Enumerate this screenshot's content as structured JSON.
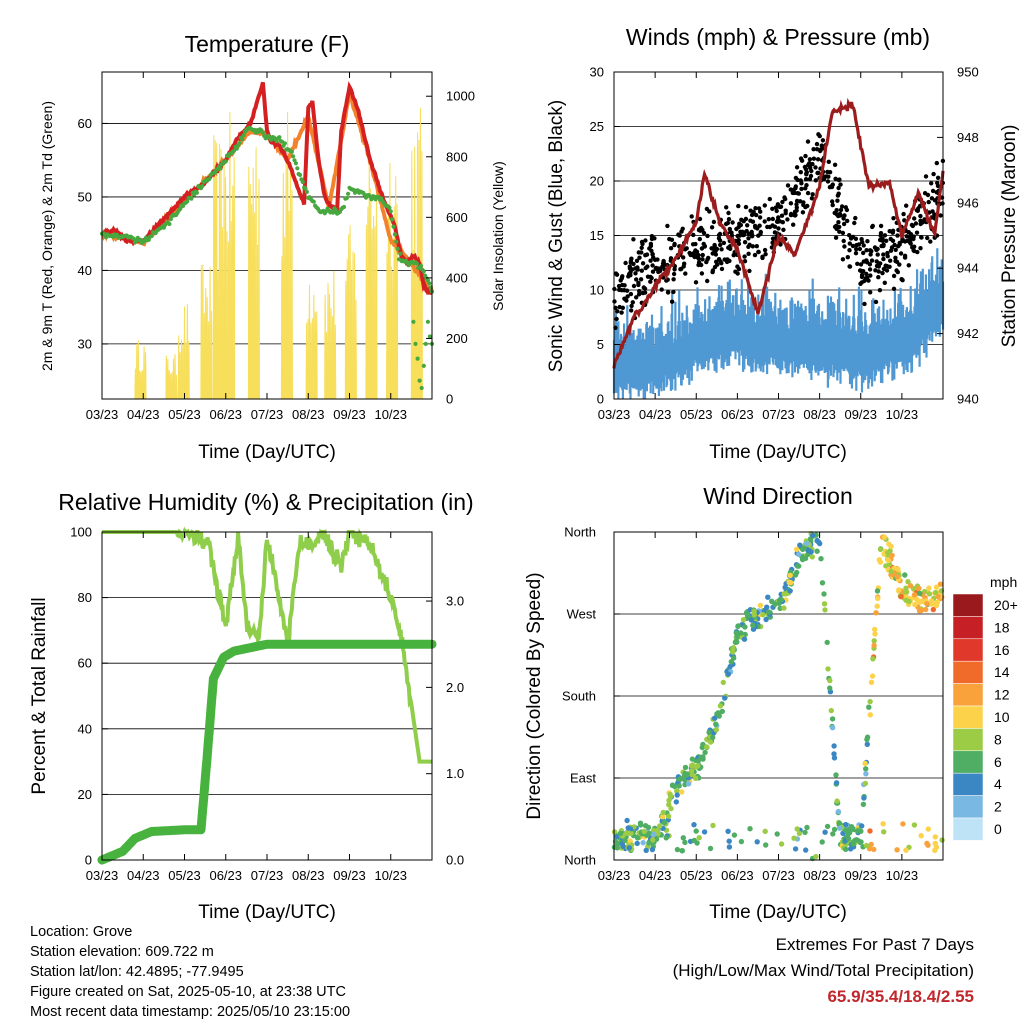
{
  "colors": {
    "temp_red": "#d42020",
    "temp_orange": "#f2822c",
    "dew_green": "#46a83e",
    "solar_yellow": "#f7df5c",
    "wind_blue": "#4f98d3",
    "gust_black": "#000000",
    "pressure_maroon": "#9b1c1c",
    "rh_light_green": "#8fce4a",
    "precip_green": "#48b23e"
  },
  "x_tick_labels": [
    "03/23",
    "04/23",
    "05/23",
    "06/23",
    "07/23",
    "08/23",
    "09/23",
    "10/23"
  ],
  "panels": {
    "temperature": {
      "title": "Temperature (F)",
      "xlabel": "Time (Day/UTC)",
      "ylabel_left": "2m & 9m T (Red, Orange) & 2m Td (Green)",
      "ylabel_right": "Solar Insolation (Yellow)",
      "y_left_ticks": [
        "30",
        "40",
        "50",
        "60"
      ],
      "y_right_ticks": [
        "0",
        "200",
        "400",
        "600",
        "800",
        "1000"
      ]
    },
    "winds": {
      "title": "Winds (mph) & Pressure (mb)",
      "xlabel": "Time (Day/UTC)",
      "ylabel_left": "Sonic Wind & Gust (Blue, Black)",
      "ylabel_right": "Station Pressure (Maroon)",
      "y_left_ticks": [
        "0",
        "5",
        "10",
        "15",
        "20",
        "25",
        "30"
      ],
      "y_right_ticks": [
        "940",
        "942",
        "944",
        "946",
        "948",
        "950"
      ]
    },
    "humidity": {
      "title": "Relative Humidity (%) & Precipitation (in)",
      "xlabel": "Time (Day/UTC)",
      "ylabel_left": "Percent & Total Rainfall",
      "y_left_ticks": [
        "0",
        "20",
        "40",
        "60",
        "80",
        "100"
      ],
      "y_right_ticks": [
        "0.0",
        "1.0",
        "2.0",
        "3.0"
      ]
    },
    "direction": {
      "title": "Wind Direction",
      "xlabel": "Time (Day/UTC)",
      "ylabel_left": "Direction (Colored By Speed)",
      "y_left_ticks": [
        "North",
        "East",
        "South",
        "West",
        "North"
      ],
      "legend_title": "mph",
      "legend_labels": [
        "20+",
        "18",
        "16",
        "14",
        "12",
        "10",
        "8",
        "6",
        "4",
        "2",
        "0"
      ],
      "legend_colors": [
        "#99191c",
        "#c62026",
        "#e0392b",
        "#f06a2a",
        "#f9a23b",
        "#fbd24a",
        "#9ccb45",
        "#4fae63",
        "#3b87c4",
        "#7ab8e4",
        "#bfe3f6"
      ]
    }
  },
  "chart_data": [
    {
      "type": "line",
      "title": "Temperature (F)",
      "xlabel": "Time (Day/UTC)",
      "ylabel": "2m & 9m T (Red, Orange) & 2m Td (Green)",
      "ylabel_right": "Solar Insolation (Yellow)",
      "x_ticks": [
        "03/23",
        "04/23",
        "05/23",
        "06/23",
        "07/23",
        "08/23",
        "09/23",
        "10/23"
      ],
      "ylim": [
        22.5,
        67
      ],
      "ylim_right": [
        0,
        1080
      ],
      "series": [
        {
          "name": "2m T (Red)",
          "axis": "left",
          "x": [
            0,
            0.3,
            0.6,
            1.0,
            1.5,
            2.0,
            2.5,
            3.0,
            3.3,
            3.6,
            3.9,
            4.0,
            4.1,
            4.3,
            4.5,
            4.7,
            4.9,
            5.0,
            5.1,
            5.25,
            5.4,
            5.5,
            5.7,
            5.8,
            6.0,
            6.2,
            6.5,
            6.8,
            7.1,
            7.25,
            7.4,
            7.55,
            7.7,
            7.8,
            7.9,
            8.0
          ],
          "y": [
            45,
            45.5,
            44,
            44,
            47,
            50,
            52,
            55,
            58,
            60,
            65.5,
            59,
            57.5,
            57,
            55,
            52,
            49,
            62,
            63,
            55,
            50,
            49,
            48,
            59,
            65,
            62,
            55,
            50,
            46,
            42,
            41,
            42,
            41,
            38,
            37,
            37
          ]
        },
        {
          "name": "9m T (Orange)",
          "axis": "left",
          "x": [
            0,
            1.0,
            2.0,
            3.0,
            3.6,
            4.0,
            4.5,
            5.0,
            5.5,
            6.0,
            6.5,
            7.0,
            7.5,
            8.0
          ],
          "y": [
            45,
            43.8,
            49.5,
            55,
            59,
            58.5,
            55,
            61,
            48.5,
            64,
            55,
            44,
            41,
            37
          ]
        },
        {
          "name": "2m Td (Green)",
          "axis": "left",
          "x": [
            0,
            0.5,
            1.0,
            1.5,
            2.0,
            2.5,
            3.0,
            3.3,
            3.5,
            3.8,
            4.1,
            4.3,
            4.6,
            4.8,
            5.0,
            5.3,
            5.8,
            6.0,
            6.5,
            6.8,
            7.0,
            7.2,
            7.4,
            7.6,
            7.8,
            8.0
          ],
          "y": [
            45,
            44.5,
            44,
            46,
            49,
            52,
            55,
            57,
            59,
            59,
            58,
            58,
            56,
            53,
            50,
            48,
            48,
            51,
            50,
            49.5,
            48,
            42,
            41,
            41,
            40,
            37
          ]
        },
        {
          "name": "Solar Insolation (Yellow)",
          "axis": "right",
          "x": [
            0,
            1,
            2,
            3,
            4,
            5,
            6,
            7,
            8
          ],
          "y": [
            0,
            0,
            300,
            0,
            750,
            0,
            1000,
            0,
            0
          ]
        }
      ]
    },
    {
      "type": "scatter",
      "title": "Winds (mph) & Pressure (mb)",
      "xlabel": "Time (Day/UTC)",
      "ylabel": "Sonic Wind & Gust (Blue, Black)",
      "ylabel_right": "Station Pressure (Maroon)",
      "x_ticks": [
        "03/23",
        "04/23",
        "05/23",
        "06/23",
        "07/23",
        "08/23",
        "09/23",
        "10/23"
      ],
      "ylim": [
        0,
        30
      ],
      "ylim_right": [
        940,
        950
      ],
      "series": [
        {
          "name": "Sonic Wind (Blue)",
          "axis": "left",
          "x": [
            0,
            1,
            2,
            3,
            4,
            5,
            6,
            7,
            8
          ],
          "y": [
            4,
            4,
            6,
            7,
            6,
            6,
            5,
            6,
            10
          ]
        },
        {
          "name": "Gust (Black)",
          "axis": "left",
          "x": [
            0,
            1,
            2,
            3,
            4,
            5,
            6,
            7,
            8
          ],
          "y": [
            10,
            12,
            14,
            15,
            16,
            22,
            12,
            14,
            19
          ]
        },
        {
          "name": "Station Pressure (Maroon)",
          "axis": "right",
          "x": [
            0,
            0.5,
            1.0,
            1.5,
            2.0,
            2.2,
            2.6,
            3.0,
            3.5,
            4.0,
            4.4,
            5.0,
            5.3,
            5.8,
            6.2,
            6.7,
            7.0,
            7.4,
            7.8,
            8.0
          ],
          "y": [
            941,
            942.5,
            943.4,
            944.3,
            945.4,
            946.9,
            945.3,
            944.6,
            942.6,
            945,
            944.4,
            946.5,
            948.8,
            949,
            946.5,
            946.6,
            945,
            946.3,
            945,
            947
          ]
        }
      ]
    },
    {
      "type": "line",
      "title": "Relative Humidity (%) & Precipitation (in)",
      "xlabel": "Time (Day/UTC)",
      "ylabel": "Percent & Total Rainfall",
      "x_ticks": [
        "03/23",
        "04/23",
        "05/23",
        "06/23",
        "07/23",
        "08/23",
        "09/23",
        "10/23"
      ],
      "ylim": [
        0,
        100
      ],
      "ylim_right": [
        0,
        3.8
      ],
      "series": [
        {
          "name": "Relative Humidity (%)",
          "axis": "left",
          "x": [
            0,
            1.8,
            2.2,
            2.6,
            3.0,
            3.3,
            3.5,
            3.8,
            4.0,
            4.5,
            4.8,
            5.0,
            5.3,
            5.8,
            6.0,
            6.5,
            7.0,
            7.3,
            7.7,
            8.0
          ],
          "y": [
            100,
            100,
            100,
            96,
            70,
            100,
            72,
            68,
            98,
            66,
            98,
            96,
            100,
            90,
            100,
            96,
            80,
            65,
            30,
            30
          ]
        },
        {
          "name": "Total Rainfall (in)",
          "axis": "right",
          "x": [
            0,
            0.5,
            0.8,
            1.2,
            2.0,
            2.4,
            2.55,
            2.7,
            2.95,
            3.2,
            3.5,
            4.0,
            8.0
          ],
          "y": [
            0,
            0.1,
            0.25,
            0.33,
            0.35,
            0.35,
            1.2,
            2.1,
            2.35,
            2.42,
            2.45,
            2.5,
            2.5
          ]
        }
      ]
    },
    {
      "type": "scatter",
      "title": "Wind Direction",
      "xlabel": "Time (Day/UTC)",
      "ylabel": "Direction (Colored By Speed)",
      "x_ticks": [
        "03/23",
        "04/23",
        "05/23",
        "06/23",
        "07/23",
        "08/23",
        "09/23",
        "10/23"
      ],
      "y_ticks": [
        "North",
        "East",
        "South",
        "West",
        "North"
      ],
      "legend_title": "mph",
      "series": [
        {
          "name": "Wind direction (deg, colored by speed)",
          "x": [
            0,
            0.5,
            1,
            1.5,
            2,
            2.5,
            3,
            3.5,
            4,
            4.5,
            5,
            5.5,
            6,
            6.5,
            7,
            7.5,
            8
          ],
          "y": [
            20,
            30,
            25,
            80,
            100,
            150,
            250,
            270,
            280,
            330,
            355,
            20,
            25,
            350,
            300,
            280,
            290
          ]
        }
      ]
    }
  ],
  "info": {
    "location": "Location: Grove",
    "elevation": "Station elevation: 609.722 m",
    "latlon": "Station lat/lon: 42.4895; -77.9495",
    "created": "Figure created on Sat, 2025-05-10, at 23:38 UTC",
    "timestamp": "Most recent data timestamp: 2025/05/10 23:15:00"
  },
  "extremes": {
    "heading": "Extremes For Past 7 Days",
    "subheading": "(High/Low/Max Wind/Total Precipitation)",
    "values": "65.9/35.4/18.4/2.55"
  }
}
